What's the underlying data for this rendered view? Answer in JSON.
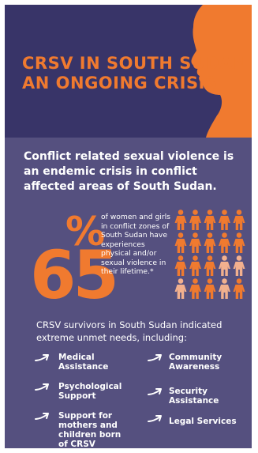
{
  "title_lines": [
    "CRSV IN SOUTH SUDAN",
    "AN ONGOING CRISIS."
  ],
  "intro": "Conflict related sexual violence is an endemic crisis in conflict affected areas of South Sudan.",
  "stat": {
    "value": "65",
    "symbol": "%",
    "description": "of women and girls in conflict zones of South Sudan have experiences physical and/or sexual violence in their lifetime.*"
  },
  "needs_intro": "CRSV survivors in South Sudan indicated extreme unmet needs, including:",
  "needs": {
    "left": [
      "Medical Assistance",
      "Psychological Support",
      "Support for mothers and children born of CRSV"
    ],
    "right": [
      "Community Awareness",
      "Security Assistance",
      "Legal Services"
    ]
  },
  "colors": {
    "background": "#55507f",
    "header": "#383468",
    "accent": "#f07a2f",
    "figure_highlight": "#f07a2f",
    "figure_muted": "#f2b08e"
  },
  "icons": [
    "woman-silhouette-icon",
    "person-icon",
    "arrow-icon"
  ]
}
